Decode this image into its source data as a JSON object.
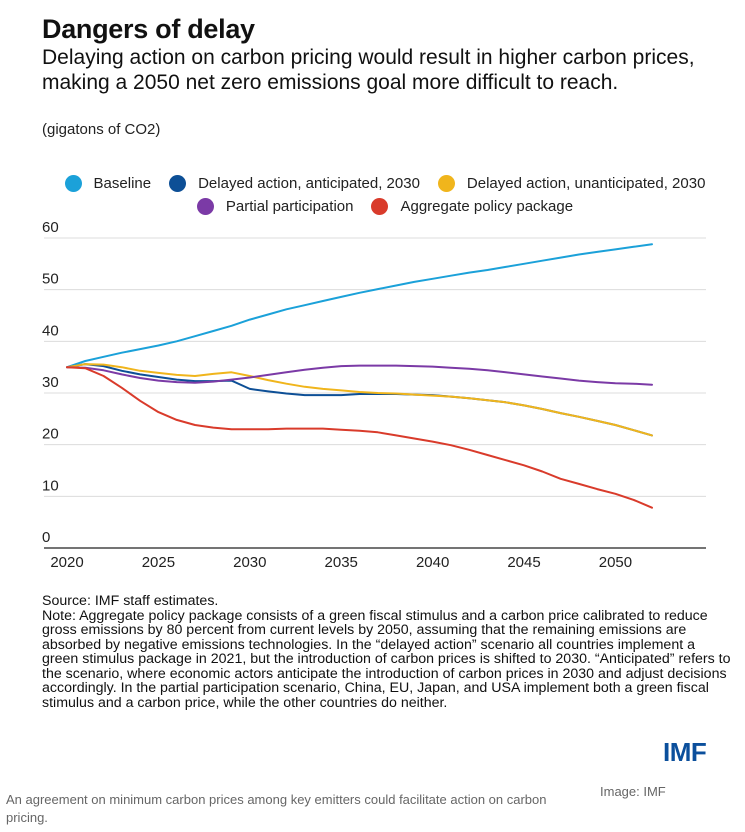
{
  "chart_data": {
    "type": "line",
    "title": "Dangers of delay",
    "subtitle": "Delaying action on carbon pricing would result in higher carbon prices, making a 2050 net zero emissions goal more difficult to reach.",
    "units": "(gigatons of CO2)",
    "x": [
      2020,
      2021,
      2022,
      2023,
      2024,
      2025,
      2026,
      2027,
      2028,
      2029,
      2030,
      2031,
      2032,
      2033,
      2034,
      2035,
      2036,
      2037,
      2038,
      2039,
      2040,
      2041,
      2042,
      2043,
      2044,
      2045,
      2046,
      2047,
      2048,
      2049,
      2050,
      2051,
      2052
    ],
    "xlim": [
      2020,
      2052
    ],
    "ylim": [
      0,
      60
    ],
    "xticks": [
      2020,
      2025,
      2030,
      2035,
      2040,
      2045,
      2050
    ],
    "yticks": [
      0,
      10,
      20,
      30,
      40,
      50,
      60
    ],
    "grid": true,
    "legend_position": "top",
    "series": [
      {
        "name": "Baseline",
        "color": "#1ba1d9",
        "values": [
          35,
          36.2,
          37,
          37.8,
          38.5,
          39.2,
          40,
          41,
          42,
          43,
          44.2,
          45.2,
          46.2,
          47,
          47.8,
          48.6,
          49.4,
          50.1,
          50.8,
          51.5,
          52.1,
          52.7,
          53.3,
          53.8,
          54.4,
          55,
          55.6,
          56.2,
          56.8,
          57.3,
          57.8,
          58.3,
          58.8
        ]
      },
      {
        "name": "Delayed action, anticipated, 2030",
        "color": "#0d4f96",
        "values": [
          35,
          35.6,
          35.2,
          34.3,
          33.6,
          33.1,
          32.6,
          32.3,
          32.3,
          32.4,
          30.8,
          30.3,
          29.9,
          29.6,
          29.6,
          29.6,
          29.8,
          29.8,
          29.8,
          29.7,
          29.6,
          29.3,
          29,
          28.6,
          28.2,
          27.6,
          26.9,
          26.1,
          25.4,
          24.6,
          23.8,
          22.8,
          21.8
        ]
      },
      {
        "name": "Delayed action, unanticipated, 2030",
        "color": "#f0b51c",
        "values": [
          35,
          35.6,
          35.5,
          35,
          34.3,
          33.9,
          33.5,
          33.3,
          33.7,
          34,
          33.3,
          32.5,
          31.8,
          31.2,
          30.8,
          30.5,
          30.2,
          30,
          29.9,
          29.7,
          29.5,
          29.3,
          29,
          28.6,
          28.2,
          27.6,
          26.9,
          26.1,
          25.4,
          24.6,
          23.8,
          22.8,
          21.8
        ]
      },
      {
        "name": "Partial participation",
        "color": "#7b3aa6",
        "values": [
          35,
          34.9,
          34.4,
          33.6,
          32.9,
          32.4,
          32.1,
          32,
          32.2,
          32.6,
          33,
          33.5,
          34,
          34.5,
          34.9,
          35.2,
          35.3,
          35.3,
          35.3,
          35.2,
          35.1,
          34.9,
          34.7,
          34.4,
          34,
          33.6,
          33.2,
          32.8,
          32.4,
          32.1,
          31.9,
          31.8,
          31.6
        ]
      },
      {
        "name": "Aggregate policy package",
        "color": "#d93b2b",
        "values": [
          35,
          34.8,
          33.3,
          31,
          28.5,
          26.3,
          24.8,
          23.8,
          23.3,
          23,
          23,
          23,
          23.1,
          23.1,
          23.1,
          22.9,
          22.7,
          22.4,
          21.8,
          21.2,
          20.6,
          19.9,
          19,
          18,
          17,
          16,
          14.8,
          13.4,
          12.4,
          11.4,
          10.5,
          9.3,
          7.8
        ]
      }
    ]
  },
  "legend": {
    "row1": [
      {
        "label": "Baseline",
        "color": "#1ba1d9"
      },
      {
        "label": "Delayed action, anticipated, 2030",
        "color": "#0d4f96"
      },
      {
        "label": "Delayed action, unanticipated, 2030",
        "color": "#f0b51c"
      }
    ],
    "row2": [
      {
        "label": "Partial participation",
        "color": "#7b3aa6"
      },
      {
        "label": "Aggregate policy package",
        "color": "#d93b2b"
      }
    ]
  },
  "notes": {
    "source": "Source: IMF staff estimates.",
    "note": "Note: Aggregate policy package consists of a green fiscal stimulus and a carbon price calibrated to reduce gross emissions by 80 percent from current levels by 2050, assuming that the remaining emissions are absorbed by negative emissions technologies. In the “delayed action” scenario all countries implement a green stimulus package in 2021, but the introduction of carbon prices is shifted to 2030. “Anticipated” refers to the scenario, where economic actors anticipate the introduction of carbon prices in 2030 and adjust decisions accordingly. In the partial participation scenario, China, EU, Japan, and USA implement both a green fiscal stimulus and a carbon price, while the other countries do neither."
  },
  "logo_text": "IMF",
  "caption": "An agreement on minimum carbon prices among key emitters could facilitate action on carbon pricing.",
  "credit": "Image: IMF"
}
